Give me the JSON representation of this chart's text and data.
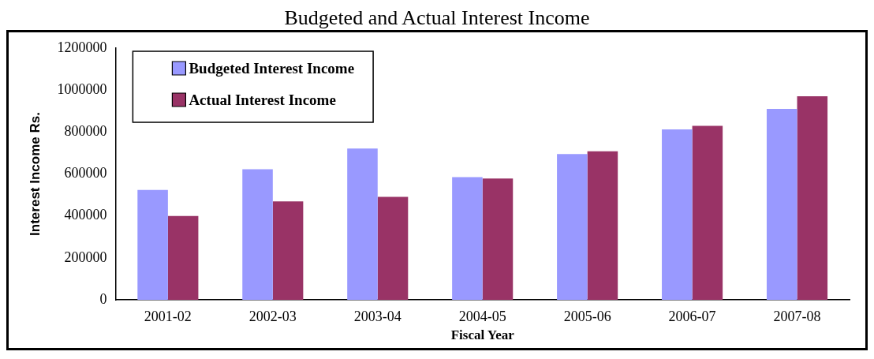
{
  "chart_data": {
    "type": "bar",
    "title": "Budgeted and Actual Interest Income",
    "xlabel": "Fiscal Year",
    "ylabel": "Interest Income Rs.",
    "categories": [
      "2001-02",
      "2002-03",
      "2003-04",
      "2004-05",
      "2005-06",
      "2006-07",
      "2007-08"
    ],
    "series": [
      {
        "name": "Budgeted Interest Income",
        "color": "#9999ff",
        "values": [
          524000,
          623000,
          721000,
          585000,
          695000,
          813000,
          910000
        ]
      },
      {
        "name": "Actual Interest Income",
        "color": "#993366",
        "values": [
          400000,
          469000,
          491000,
          578000,
          708000,
          829000,
          971000
        ]
      }
    ],
    "ylim": [
      0,
      1200000
    ],
    "yticks": [
      0,
      200000,
      400000,
      600000,
      800000,
      1000000,
      1200000
    ],
    "grid": false,
    "legend": "top left"
  }
}
